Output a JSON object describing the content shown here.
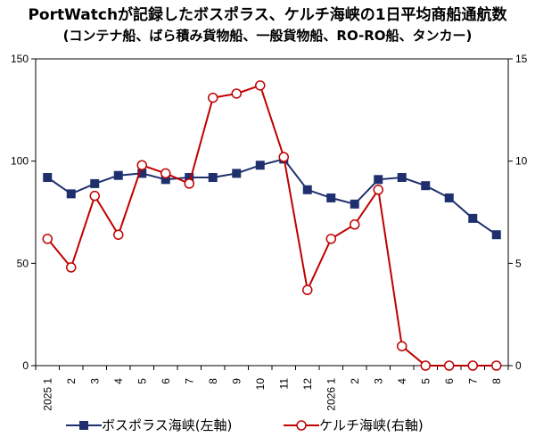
{
  "title": "PortWatchが記録したボスポラス、ケルチ海峡の1日平均商船通航数",
  "subtitle": "(コンテナ船、ばら積み貨物船、一般貨物船、RO-RO船、タンカー)",
  "colors": {
    "series1": "#1f2f6e",
    "series2": "#c00000",
    "axis": "#000000"
  },
  "chart_data": {
    "type": "line",
    "title": "PortWatchが記録したボスポラス、ケルチ海峡の1日平均商船通航数",
    "subtitle": "(コンテナ船、ばら積み貨物船、一般貨物船、RO-RO船、タンカー)",
    "x": [
      "1",
      "2",
      "3",
      "4",
      "5",
      "6",
      "7",
      "8",
      "9",
      "10",
      "11",
      "12",
      "1",
      "2",
      "3",
      "4",
      "5",
      "6",
      "7",
      "8"
    ],
    "year_labels": [
      "2025",
      "2026"
    ],
    "left_axis": {
      "ylim": [
        0,
        150
      ],
      "ticks": [
        0,
        50,
        100,
        150
      ]
    },
    "right_axis": {
      "ylim": [
        0,
        15
      ],
      "ticks": [
        0,
        5,
        10,
        15
      ]
    },
    "series": [
      {
        "name": "ボスポラス海峡(左軸)",
        "axis": "left",
        "marker": "square",
        "values": [
          92,
          84,
          89,
          93,
          94,
          91,
          92,
          92,
          94,
          98,
          101,
          86,
          82,
          79,
          91,
          92,
          88,
          82,
          72,
          64
        ]
      },
      {
        "name": "ケルチ海峡(右軸)",
        "axis": "right",
        "marker": "open-circle",
        "values": [
          6.2,
          4.8,
          8.3,
          6.4,
          9.8,
          9.4,
          8.9,
          13.1,
          13.3,
          13.7,
          10.2,
          3.7,
          6.2,
          6.9,
          8.6,
          0.95,
          0.0,
          0.0,
          0.0,
          0.0
        ]
      }
    ],
    "grid": false,
    "legend": "bottom"
  }
}
